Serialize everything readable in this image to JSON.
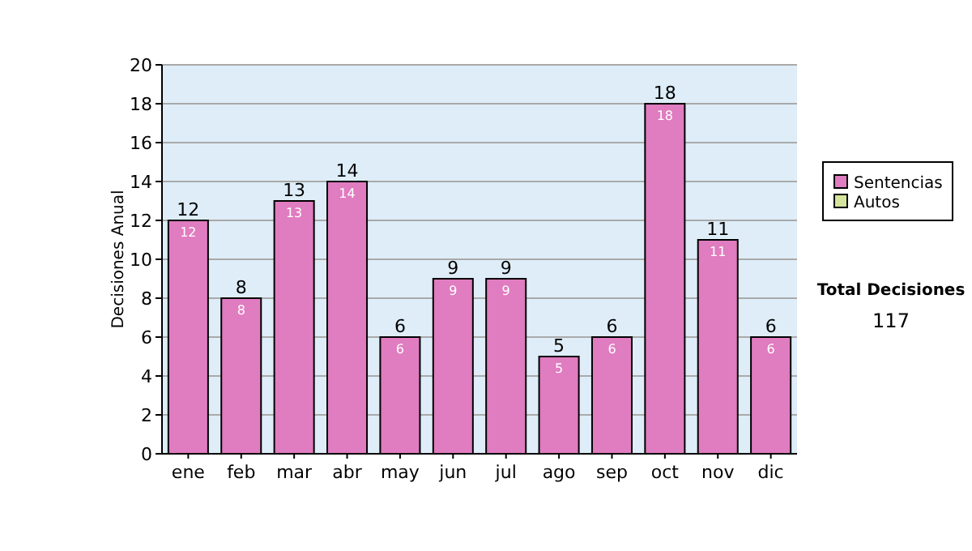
{
  "chart_data": {
    "type": "bar",
    "stacked": true,
    "ylabel": "Decisiones Anual",
    "categories": [
      "ene",
      "feb",
      "mar",
      "abr",
      "may",
      "jun",
      "jul",
      "ago",
      "sep",
      "oct",
      "nov",
      "dic"
    ],
    "series": [
      {
        "name": "Sentencias",
        "color": "#e07cc0",
        "values": [
          12,
          8,
          13,
          14,
          6,
          9,
          9,
          5,
          6,
          18,
          11,
          6
        ],
        "value_labels": [
          "12",
          "8",
          "13",
          "14",
          "6",
          "9",
          "9",
          "5",
          "6",
          "18",
          "11",
          "6"
        ]
      },
      {
        "name": "Autos",
        "color": "#d4e49c",
        "values": [
          0,
          0,
          0,
          0,
          0,
          0,
          0,
          0,
          0,
          0,
          0,
          0
        ]
      }
    ],
    "totals": [
      "12",
      "8",
      "13",
      "14",
      "6",
      "9",
      "9",
      "5",
      "6",
      "18",
      "11",
      "6"
    ],
    "ylim": [
      0,
      20
    ],
    "yticks": [
      0,
      2,
      4,
      6,
      8,
      10,
      12,
      14,
      16,
      18,
      20
    ],
    "grid": "y",
    "legend": "right",
    "annotations": [
      "Total Decisiones",
      "117"
    ]
  }
}
